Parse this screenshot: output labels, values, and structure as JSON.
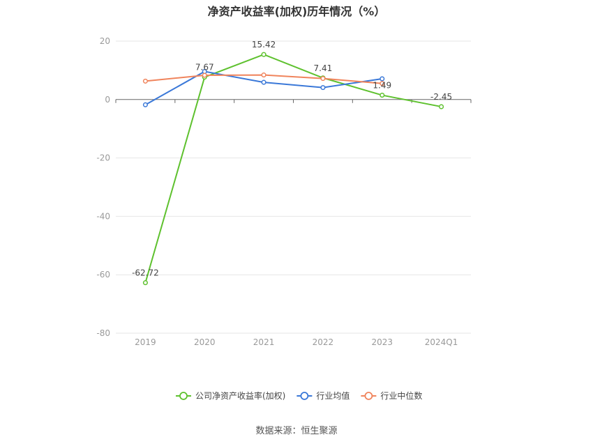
{
  "title": "净资产收益率(加权)历年情况（%）",
  "source": "数据来源：恒生聚源",
  "chart_data": {
    "type": "line",
    "title": "净资产收益率(加权)历年情况（%）",
    "categories": [
      "2019",
      "2020",
      "2021",
      "2022",
      "2023",
      "2024Q1"
    ],
    "ylim": [
      -80,
      20
    ],
    "yticks": [
      20,
      0,
      -20,
      -40,
      -60,
      -80
    ],
    "grid": true,
    "legend_position": "bottom",
    "series": [
      {
        "name": "公司净资产收益率(加权)",
        "color": "#5ec12e",
        "values": [
          -62.72,
          7.67,
          15.42,
          7.41,
          1.49,
          -2.45
        ],
        "labels": [
          "-62.72",
          "7.67",
          "15.42",
          "7.41",
          "1.49",
          "-2.45"
        ]
      },
      {
        "name": "行业均值",
        "color": "#3a78d8",
        "values": [
          -1.8,
          9.6,
          5.9,
          4.1,
          7.1,
          null
        ]
      },
      {
        "name": "行业中位数",
        "color": "#f0845c",
        "values": [
          6.3,
          8.3,
          8.4,
          7.2,
          5.5,
          null
        ]
      }
    ]
  }
}
